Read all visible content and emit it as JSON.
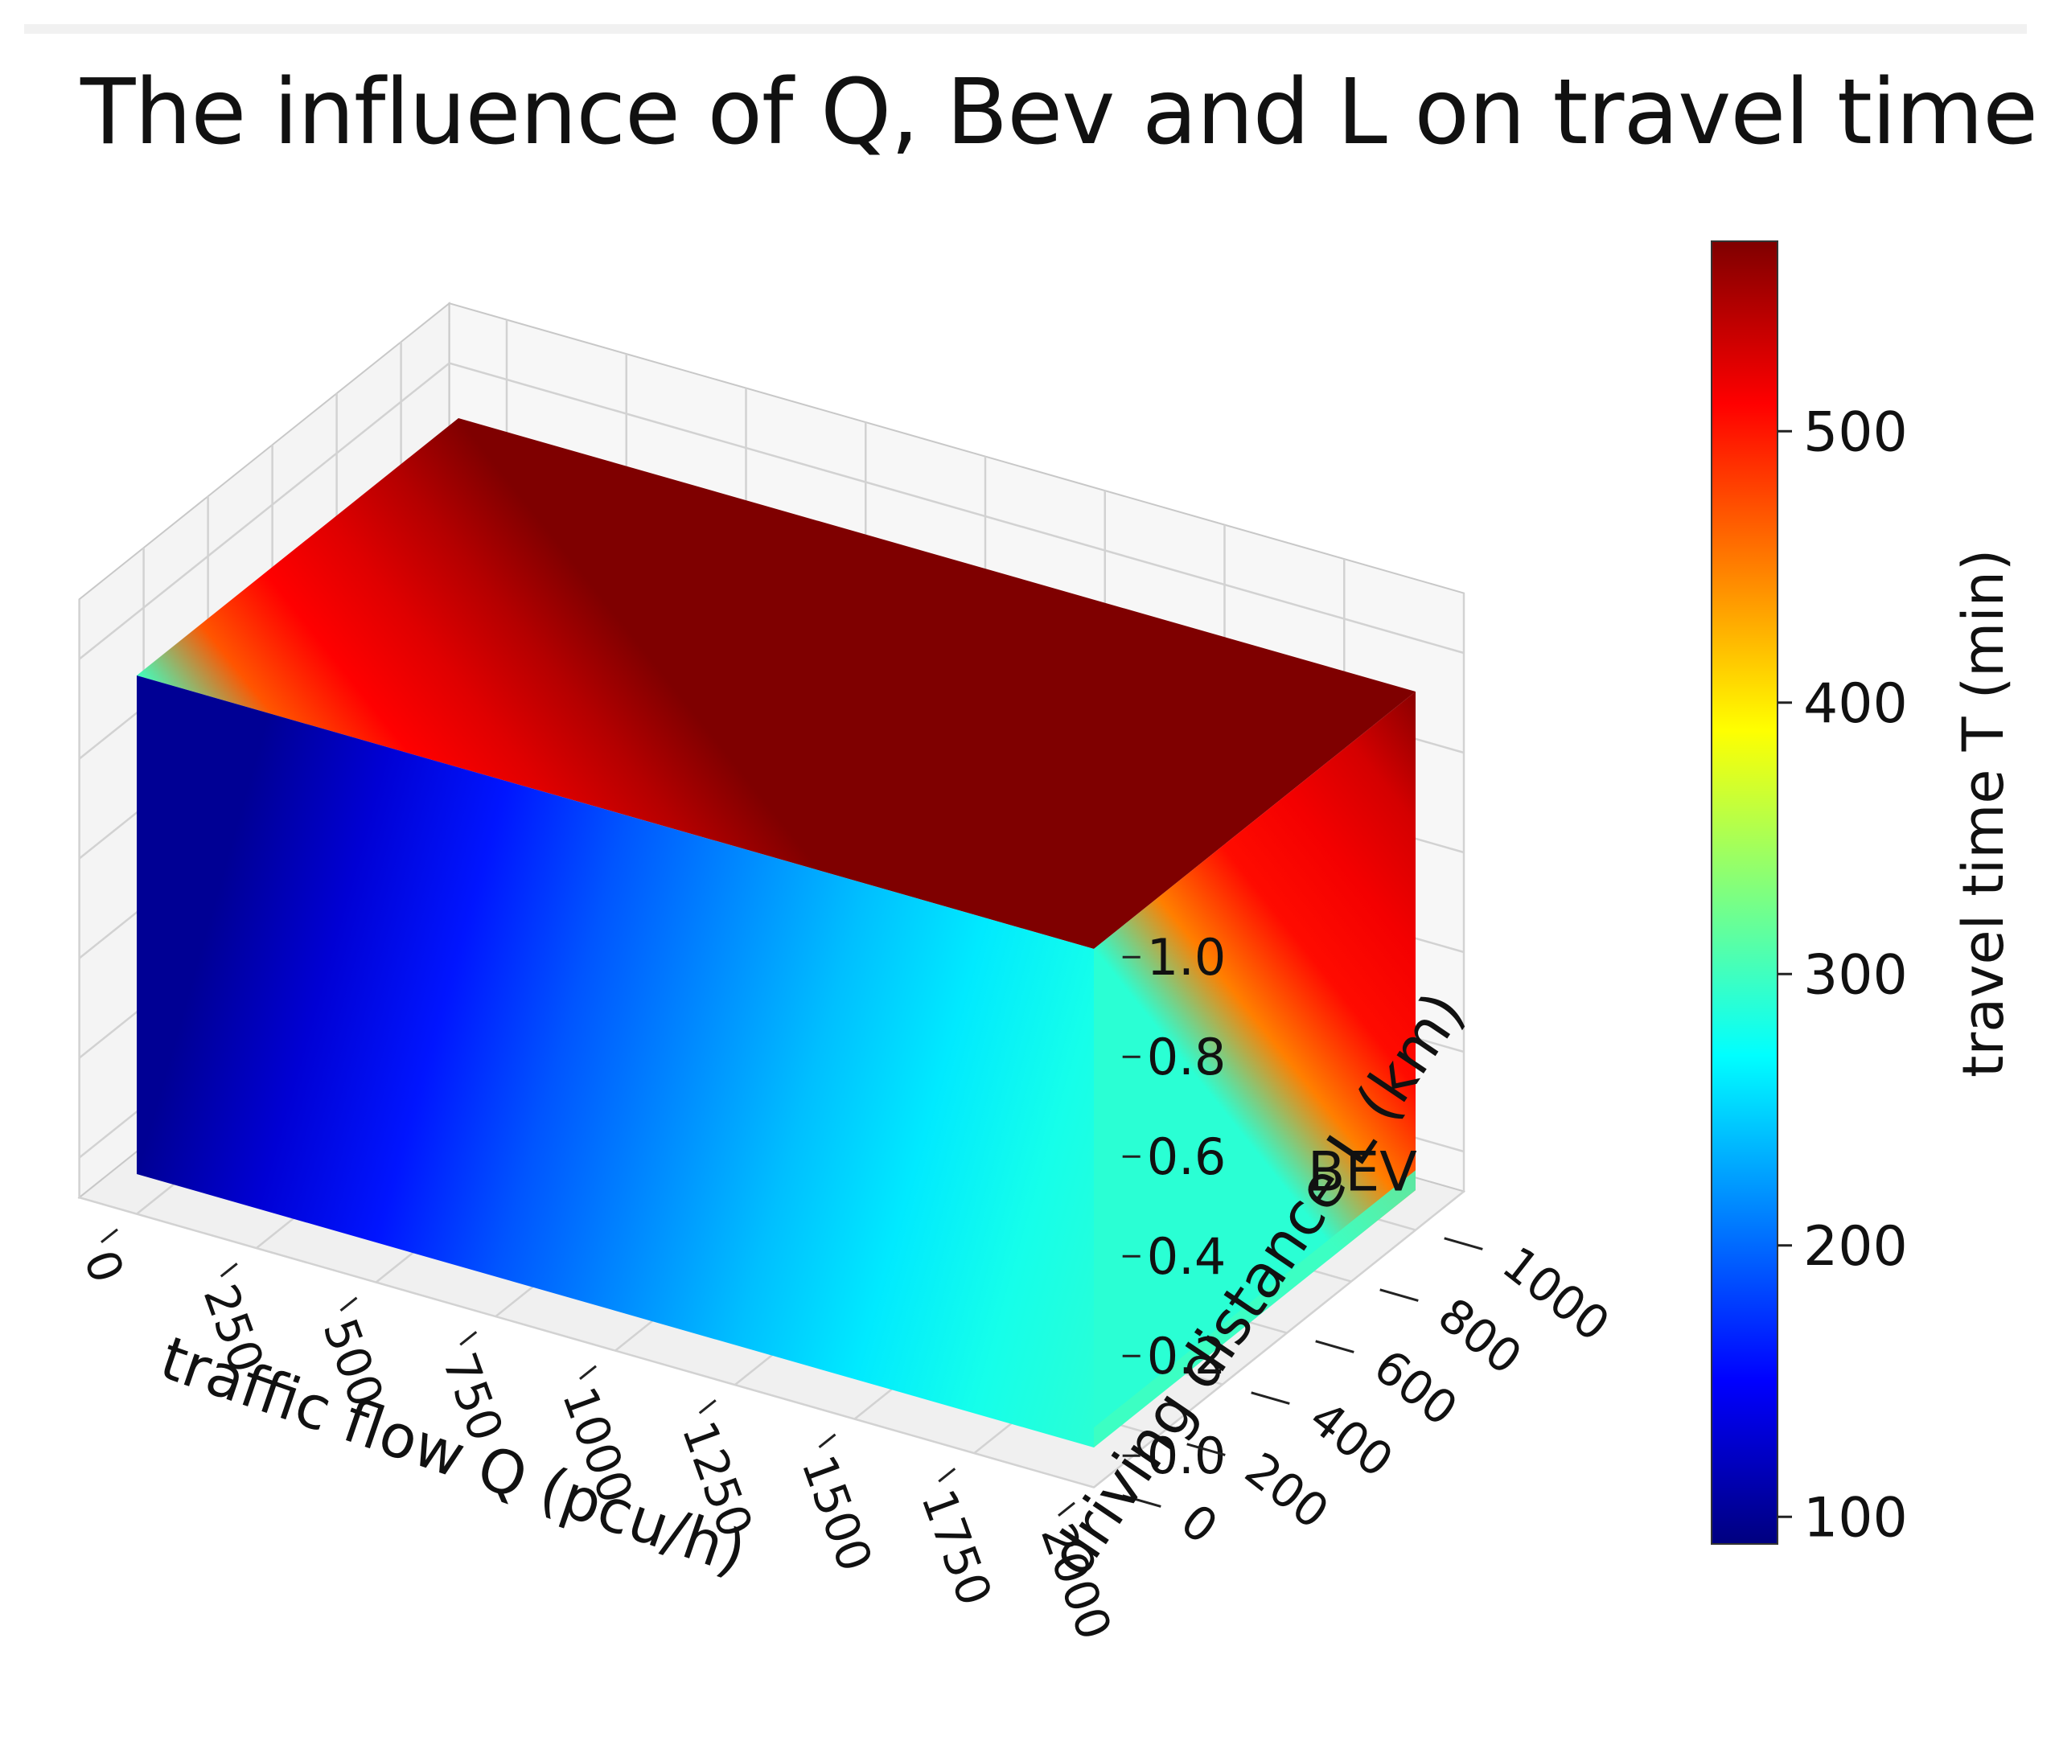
{
  "chart_data": {
    "type": "surface-3d",
    "title": "The influence of Q, Bev and L on travel time T",
    "xlabel": "traffic flow Q (pcu/h)",
    "ylabel": "driving distance L (km)",
    "zlabel": "BEV",
    "colorbar_label": "travel time T (min)",
    "x_ticks": [
      "0",
      "250",
      "500",
      "750",
      "1000",
      "1250",
      "1500",
      "1750",
      "2000"
    ],
    "y_ticks": [
      "0",
      "200",
      "400",
      "600",
      "800",
      "1000"
    ],
    "z_ticks": [
      "0.0",
      "0.2",
      "0.4",
      "0.6",
      "0.8",
      "1.0"
    ],
    "colorbar_ticks": [
      "100",
      "200",
      "300",
      "400",
      "500"
    ],
    "xlim": [
      0,
      2000
    ],
    "ylim": [
      0,
      1000
    ],
    "zlim": [
      0,
      1
    ],
    "colorbar_range": [
      90,
      570
    ],
    "colormap": "jet",
    "grid": true,
    "colorbar_placement": "right",
    "face_values": {
      "front_face_Q_samples": [
        0,
        250,
        500,
        750,
        1000,
        1250,
        1500,
        1750,
        2000
      ],
      "front_face_T": [
        100,
        130,
        160,
        190,
        215,
        240,
        260,
        280,
        290
      ],
      "right_face_L_samples": [
        0,
        200,
        400,
        600,
        800,
        1000
      ],
      "right_face_T": [
        290,
        450,
        505,
        515,
        530,
        565
      ],
      "top_face_T_near_Q0": [
        300,
        370,
        420,
        450,
        480,
        510
      ],
      "top_face_T_near_Q2000": [
        300,
        470,
        510,
        525,
        545,
        570
      ]
    }
  },
  "palette": {
    "jet": [
      "#00007f",
      "#0000ff",
      "#007fff",
      "#00ffff",
      "#7fff7f",
      "#ffff00",
      "#ff7f00",
      "#ff0000",
      "#7f0000"
    ]
  }
}
